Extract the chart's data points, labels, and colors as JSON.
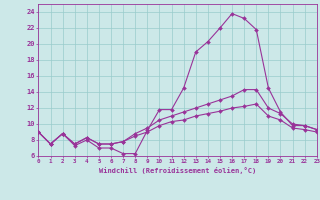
{
  "xlabel": "Windchill (Refroidissement éolien,°C)",
  "background_color": "#cce8e8",
  "grid_color": "#99cccc",
  "line_color": "#993399",
  "xmin": 0,
  "xmax": 23,
  "ymin": 6,
  "ymax": 25,
  "yticks": [
    6,
    8,
    10,
    12,
    14,
    16,
    18,
    20,
    22,
    24
  ],
  "xticks": [
    0,
    1,
    2,
    3,
    4,
    5,
    6,
    7,
    8,
    9,
    10,
    11,
    12,
    13,
    14,
    15,
    16,
    17,
    18,
    19,
    20,
    21,
    22,
    23
  ],
  "series1_x": [
    0,
    1,
    2,
    3,
    4,
    5,
    6,
    7,
    8,
    9,
    10,
    11,
    12,
    13,
    14,
    15,
    16,
    17,
    18,
    19,
    20,
    21,
    22,
    23
  ],
  "series1_y": [
    9.0,
    7.5,
    8.8,
    7.3,
    8.0,
    7.0,
    7.0,
    6.3,
    6.3,
    9.2,
    11.8,
    11.8,
    14.5,
    19.0,
    20.3,
    22.0,
    23.8,
    23.2,
    21.8,
    14.5,
    11.5,
    9.8,
    9.8,
    9.3
  ],
  "series2_x": [
    0,
    1,
    2,
    3,
    4,
    5,
    6,
    7,
    8,
    9,
    10,
    11,
    12,
    13,
    14,
    15,
    16,
    17,
    18,
    19,
    20,
    21,
    22,
    23
  ],
  "series2_y": [
    9.0,
    7.5,
    8.8,
    7.5,
    8.3,
    7.5,
    7.5,
    7.8,
    8.8,
    9.5,
    10.5,
    11.0,
    11.5,
    12.0,
    12.5,
    13.0,
    13.5,
    14.3,
    14.3,
    12.0,
    11.3,
    10.0,
    9.8,
    9.3
  ],
  "series3_x": [
    0,
    1,
    2,
    3,
    4,
    5,
    6,
    7,
    8,
    9,
    10,
    11,
    12,
    13,
    14,
    15,
    16,
    17,
    18,
    19,
    20,
    21,
    22,
    23
  ],
  "series3_y": [
    9.0,
    7.5,
    8.8,
    7.5,
    8.3,
    7.5,
    7.5,
    7.8,
    8.5,
    9.0,
    9.8,
    10.3,
    10.5,
    11.0,
    11.3,
    11.6,
    12.0,
    12.2,
    12.5,
    11.0,
    10.5,
    9.5,
    9.3,
    9.0
  ]
}
